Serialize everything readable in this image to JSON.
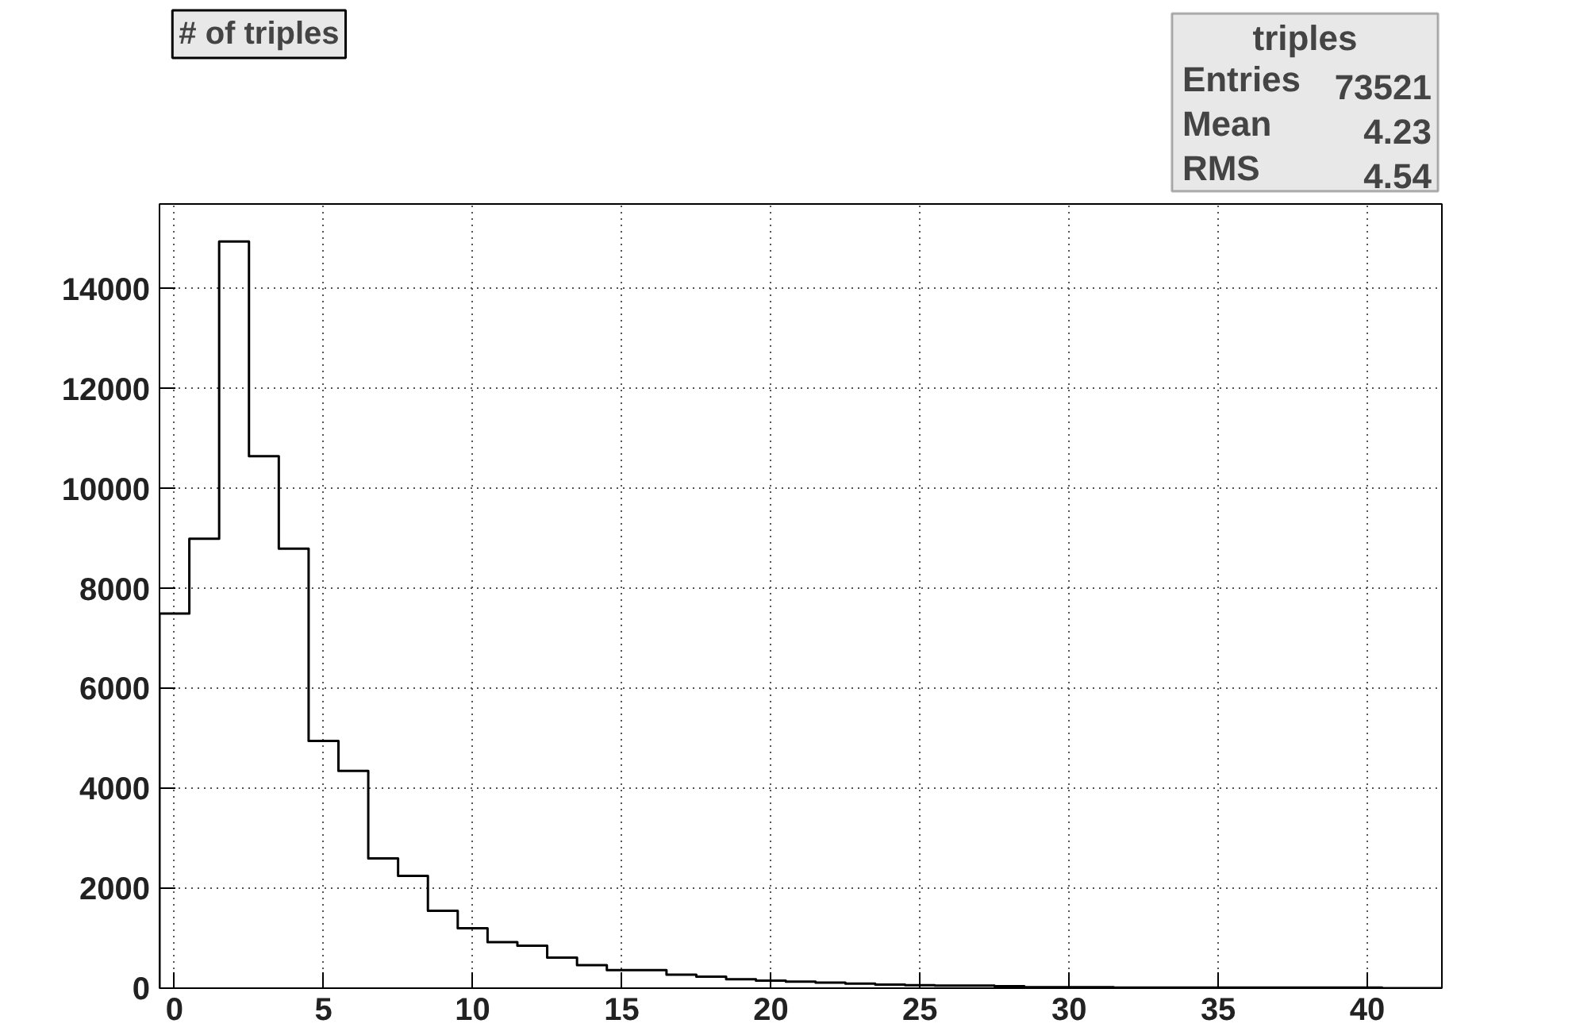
{
  "chart_data": {
    "type": "histogram",
    "title": "# of triples",
    "bins": [
      -0.5,
      0.5,
      1.5,
      2.5,
      3.5,
      4.5,
      5.5,
      6.5,
      7.5,
      8.5,
      9.5,
      10.5,
      11.5,
      12.5,
      13.5,
      14.5,
      15.5,
      16.5,
      17.5,
      18.5,
      19.5,
      20.5,
      21.5,
      22.5,
      23.5,
      24.5,
      25.5,
      26.5,
      27.5,
      28.5,
      29.5,
      30.5,
      31.5,
      32.5,
      33.5,
      34.5,
      35.5,
      36.5,
      37.5,
      38.5,
      39.5,
      40.5,
      41.5,
      42.5
    ],
    "values": [
      7500,
      9000,
      14950,
      10650,
      8800,
      4950,
      4350,
      2600,
      2250,
      1550,
      1200,
      920,
      850,
      610,
      460,
      360,
      360,
      270,
      230,
      180,
      150,
      130,
      110,
      90,
      70,
      60,
      50,
      50,
      40,
      20,
      20,
      20,
      10,
      10,
      10,
      10,
      10,
      10,
      10,
      10,
      10,
      0,
      0
    ],
    "color": "#000000",
    "xlim": [
      -0.5,
      42.5
    ],
    "xticks": [
      0,
      5,
      10,
      15,
      20,
      25,
      30,
      35,
      40
    ],
    "ylim": [
      0,
      15700
    ],
    "yticks": [
      0,
      2000,
      4000,
      6000,
      8000,
      10000,
      12000,
      14000
    ],
    "grid": true,
    "annotations": [
      "triples",
      "Entries 73521",
      "Mean 4.23",
      "RMS 4.54"
    ]
  }
}
